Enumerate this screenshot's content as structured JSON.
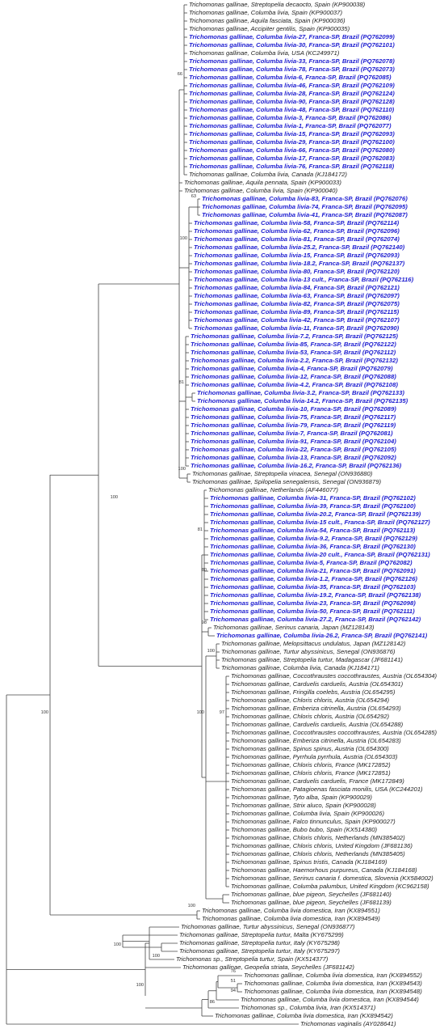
{
  "label_color": "#222222",
  "leaves": [
    {
      "label": "Trichomonas gallinae, Streptopelia decaocto, Spain (KP900038)"
    },
    {
      "label": "Trichomonas gallinae, Columba livia, Spain (KP900037)"
    },
    {
      "label": "Trichomonas gallinae, Aquila fasciata, Spain (KP900036)"
    },
    {
      "label": "Trichomonas gallinae, Accipiter gentilis, Spain (KP900035)"
    },
    {
      "label": "Trichomonas gallinae, Columba livia-27, Franca-SP, Brazil (PQ762099)",
      "color": "#1c1cd0"
    },
    {
      "label": "Trichomonas gallinae, Columba livia-30, Franca-SP, Brazil (PQ762101)",
      "color": "#1c1cd0"
    },
    {
      "label": "Trichomonas gallinae, Columba livia, USA (KC249971)"
    },
    {
      "label": "Trichomonas gallinae, Columba livia-33, Franca-SP, Brazil (PQ762078)",
      "color": "#1c1cd0"
    },
    {
      "label": "Trichomonas gallinae, Columba livia-78, Franca-SP, Brazil (PQ762073)",
      "color": "#1c1cd0"
    },
    {
      "label": "Trichomonas gallinae, Columba livia-6, Franca-SP, Brazil (PQ762085)",
      "color": "#1c1cd0"
    },
    {
      "label": "Trichomonas gallinae, Columba livia-46, Franca-SP, Brazil (PQ762109)",
      "color": "#1c1cd0"
    },
    {
      "label": "Trichomonas gallinae, Columba livia-28, Franca-SP, Brazil (PQ762124)",
      "color": "#1c1cd0"
    },
    {
      "label": "Trichomonas gallinae, Columba livia-90, Franca-SP, Brazil (PQ762128)",
      "color": "#1c1cd0"
    },
    {
      "label": "Trichomonas gallinae, Columba livia-48, Franca-SP, Brazil (PQ762110)",
      "color": "#1c1cd0"
    },
    {
      "label": "Trichomonas gallinae, Columba livia-3, Franca-SP, Brazil (PQ762086)",
      "color": "#1c1cd0"
    },
    {
      "label": "Trichomonas gallinae, Columba livia-1, Franca-SP, Brazil (PQ762077)",
      "color": "#1c1cd0"
    },
    {
      "label": "Trichomonas gallinae, Columba livia-15, Franca-SP, Brazil (PQ762093)",
      "color": "#1c1cd0"
    },
    {
      "label": "Trichomonas gallinae, Columba livia-29, Franca-SP, Brazil (PQ762100)",
      "color": "#1c1cd0"
    },
    {
      "label": "Trichomonas gallinae, Columba livia-66, Franca-SP, Brazil (PQ762080)",
      "color": "#1c1cd0"
    },
    {
      "label": "Trichomonas gallinae, Columba livia-17, Franca-SP, Brazil (PQ762083)",
      "color": "#1c1cd0"
    },
    {
      "label": "Trichomonas gallinae, Columba livia-76, Franca-SP, Brazil (PQ762118)",
      "color": "#1c1cd0"
    },
    {
      "label": "Trichomonas gallinae, Columba livia, Canada (KJ184172)"
    },
    {
      "label": "Trichomonas gallinae, Aquila pennata, Spain (KP900033)"
    },
    {
      "label": "Trichomonas gallinae, Columba livia, Spain (KP900040)"
    },
    {
      "label": "Trichomonas gallinae, Columba livia-83, Franca-SP, Brazil (PQ762076)",
      "color": "#1c1cd0"
    },
    {
      "label": "Trichomonas gallinae, Columba livia-74, Franca-SP, Brazil (PQ762095)",
      "color": "#1c1cd0"
    },
    {
      "label": "Trichomonas gallinae, Columba livia-41, Franca-SP, Brazil (PQ762087)",
      "color": "#1c1cd0"
    },
    {
      "label": "Trichomonas gallinae, Columba livia-58, Franca-SP, Brazil (PQ762114)",
      "color": "#1c1cd0"
    },
    {
      "label": "Trichomonas gallinae, Columba livia-62, Franca-SP, Brazil (PQ762096)",
      "color": "#1c1cd0"
    },
    {
      "label": "Trichomonas gallinae, Columba livia-81, Franca-SP, Brazil (PQ762074)",
      "color": "#1c1cd0"
    },
    {
      "label": "Trichomonas gallinae, Columba livia-25.2, Franca-SP, Brazil (PQ762140)",
      "color": "#1c1cd0"
    },
    {
      "label": "Trichomonas gallinae, Columba livia-15, Franca-SP, Brazil (PQ762093)",
      "color": "#1c1cd0"
    },
    {
      "label": "Trichomonas gallinae, Columba livia-18.2, Franca-SP, Brazil (PQ762137)",
      "color": "#1c1cd0"
    },
    {
      "label": "Trichomonas gallinae, Columba livia-80, Franca-SP, Brazil (PQ762120)",
      "color": "#1c1cd0"
    },
    {
      "label": "Trichomonas gallinae, Columba livia-13 cult., Franca-SP, Brazil (PQ762116)",
      "color": "#1c1cd0"
    },
    {
      "label": "Trichomonas gallinae, Columba livia-84, Franca-SP, Brazil (PQ762121)",
      "color": "#1c1cd0"
    },
    {
      "label": "Trichomonas gallinae, Columba livia-63, Franca-SP, Brazil (PQ762097)",
      "color": "#1c1cd0"
    },
    {
      "label": "Trichomonas gallinae, Columba livia-82, Franca-SP, Brazil (PQ762075)",
      "color": "#1c1cd0"
    },
    {
      "label": "Trichomonas gallinae, Columba livia-89, Franca-SP, Brazil (PQ762115)",
      "color": "#1c1cd0"
    },
    {
      "label": "Trichomonas gallinae, Columba livia-42, Franca-SP, Brazil (PQ762107)",
      "color": "#1c1cd0"
    },
    {
      "label": "Trichomonas gallinae, Columba livia-11, Franca-SP, Brazil (PQ762090)",
      "color": "#1c1cd0"
    },
    {
      "label": "Trichomonas gallinae, Columba livia-7.2, Franca-SP, Brazil (PQ762125)",
      "color": "#1c1cd0"
    },
    {
      "label": "Trichomonas gallinae, Columba livia-85, Franca-SP, Brazil (PQ762122)",
      "color": "#1c1cd0"
    },
    {
      "label": "Trichomonas gallinae, Columba livia-53, Franca-SP, Brazil (PQ762112)",
      "color": "#1c1cd0"
    },
    {
      "label": "Trichomonas gallinae, Columba livia-2.2, Franca-SP, Brazil (PQ762132)",
      "color": "#1c1cd0"
    },
    {
      "label": "Trichomonas gallinae, Columba livia-4, Franca-SP, Brazil (PQ762079)",
      "color": "#1c1cd0"
    },
    {
      "label": "Trichomonas gallinae, Columba livia-12, Franca-SP, Brazil (PQ762088)",
      "color": "#1c1cd0"
    },
    {
      "label": "Trichomonas gallinae, Columba livia-4.2, Franca-SP, Brazil (PQ762108)",
      "color": "#1c1cd0"
    },
    {
      "label": "Trichomonas gallinae, Columba livia-3.2, Franca-SP, Brazil (PQ762133)",
      "color": "#1c1cd0"
    },
    {
      "label": "Trichomonas gallinae, Columba livia-14.2, Franca-SP, Brazil (PQ762135)",
      "color": "#1c1cd0"
    },
    {
      "label": "Trichomonas gallinae, Columba livia-10, Franca-SP, Brazil (PQ762089)",
      "color": "#1c1cd0"
    },
    {
      "label": "Trichomonas gallinae, Columba livia-75, Franca-SP, Brazil (PQ762117)",
      "color": "#1c1cd0"
    },
    {
      "label": "Trichomonas gallinae, Columba livia-79, Franca-SP, Brazil (PQ762119)",
      "color": "#1c1cd0"
    },
    {
      "label": "Trichomonas gallinae, Columba livia-7, Franca-SP, Brazil (PQ762081)",
      "color": "#1c1cd0"
    },
    {
      "label": "Trichomonas gallinae, Columba livia-91, Franca-SP, Brazil (PQ762104)",
      "color": "#1c1cd0"
    },
    {
      "label": "Trichomonas gallinae, Columba livia-22, Franca-SP, Brazil (PQ762105)",
      "color": "#1c1cd0"
    },
    {
      "label": "Trichomonas gallinae, Columba livia-13, Franca-SP, Brazil (PQ762092)",
      "color": "#1c1cd0"
    },
    {
      "label": "Trichomonas gallinae, Columba livia-16.2, Franca-SP, Brazil (PQ762136)",
      "color": "#1c1cd0"
    },
    {
      "label": "Trichomonas gallinae, Streptopelia vinacea, Senegal (ON936880)"
    },
    {
      "label": "Trichomonas gallinae, Spilopelia senegalensis, Senegal (ON936879)"
    },
    {
      "label": "Trichomonas gallinae, Netherlands (AF446077)"
    },
    {
      "label": "Trichomonas gallinae, Columba livia-31, Franca-SP, Brazil (PQ762102)",
      "color": "#1c1cd0"
    },
    {
      "label": "Trichomonas gallinae, Columba livia-39, Franca-SP, Brazil (PQ762100)",
      "color": "#1c1cd0"
    },
    {
      "label": "Trichomonas gallinae, Columba livia-20.2, Franca-SP, Brazil (PQ762139)",
      "color": "#1c1cd0"
    },
    {
      "label": "Trichomonas gallinae, Columba livia-15 cult., Franca-SP, Brazil (PQ762127)",
      "color": "#1c1cd0"
    },
    {
      "label": "Trichomonas gallinae, Columba livia-54, Franca-SP, Brazil (PQ762113)",
      "color": "#1c1cd0"
    },
    {
      "label": "Trichomonas gallinae, Columba livia-9.2, Franca-SP, Brazil (PQ762129)",
      "color": "#1c1cd0"
    },
    {
      "label": "Trichomonas gallinae, Columba livia-36, Franca-SP, Brazil (PQ762130)",
      "color": "#1c1cd0"
    },
    {
      "label": "Trichomonas gallinae, Columba livia-20 cult., Franca-SP, Brazil (PQ762131)",
      "color": "#1c1cd0"
    },
    {
      "label": "Trichomonas gallinae, Columba livia-5, Franca-SP, Brazil (PQ762082)",
      "color": "#1c1cd0"
    },
    {
      "label": "Trichomonas gallinae, Columba livia-21, Franca-SP, Brazil (PQ762091)",
      "color": "#1c1cd0"
    },
    {
      "label": "Trichomonas gallinae, Columba livia-1.2, Franca-SP, Brazil (PQ762126)",
      "color": "#1c1cd0"
    },
    {
      "label": "Trichomonas gallinae, Columba livia-35, Franca-SP, Brazil (PQ762103)",
      "color": "#1c1cd0"
    },
    {
      "label": "Trichomonas gallinae, Columba livia-19.2, Franca-SP, Brazil (PQ762138)",
      "color": "#1c1cd0"
    },
    {
      "label": "Trichomonas gallinae, Columba livia-23, Franca-SP, Brazil (PQ762098)",
      "color": "#1c1cd0"
    },
    {
      "label": "Trichomonas gallinae, Columba livia-50, Franca-SP, Brazil (PQ762111)",
      "color": "#1c1cd0"
    },
    {
      "label": "Trichomonas gallinae, Columba livia-27.2, Franca-SP, Brazil (PQ762142)",
      "color": "#1c1cd0"
    },
    {
      "label": "Trichomonas gallinae, Serinus canaria, Japan (MZ128143)"
    },
    {
      "label": "Trichomonas gallinae, Columba livia-26.2, Franca-SP, Brazil (PQ762141)",
      "color": "#1c1cd0"
    },
    {
      "label": "Trichomonas gallinae, Melopsittacus undulatus, Japan (MZ128142)"
    },
    {
      "label": "Trichomonas gallinae, Turtur abyssinicus, Senegal (ON936876)"
    },
    {
      "label": "Trichomonas gallinae, Streptopelia turtur, Madagascar (JF681141)"
    },
    {
      "label": "Trichomonas gallinae, Columba livia, Canada (KJ184171)"
    },
    {
      "label": "Trichomonas gallinae, Coccothraustes coccothraustes, Austria (OL654304)"
    },
    {
      "label": "Trichomonas gallinae, Carduelis carduelis, Austria (OL654301)"
    },
    {
      "label": "Trichomonas gallinae, Fringilla coelebs, Austria (OL654295)"
    },
    {
      "label": "Trichomonas gallinae, Chloris chloris, Austria (OL654294)"
    },
    {
      "label": "Trichomonas gallinae, Emberiza citrinella, Austria (OL654293)"
    },
    {
      "label": "Trichomonas gallinae, Chloris chloris, Austria (OL654292)"
    },
    {
      "label": "Trichomonas gallinae, Carduelis carduelis, Austria (OL654288)"
    },
    {
      "label": "Trichomonas gallinae, Coccothraustes coccothraustes, Austria (OL654285)"
    },
    {
      "label": "Trichomonas gallinae, Emberiza citrinella, Austria (OL654283)"
    },
    {
      "label": "Trichomonas gallinae, Spinus spinus, Austria (OL654300)"
    },
    {
      "label": "Trichomonas gallinae, Pyrrhula pyrrhula, Austria (OL654303)"
    },
    {
      "label": "Trichomonas gallinae, Chloris chloris, France (MK172852)"
    },
    {
      "label": "Trichomonas gallinae, Chloris chloris, France (MK172851)"
    },
    {
      "label": "Trichomonas gallinae, Carduelis carduelis, France (MK172849)"
    },
    {
      "label": "Trichomonas gallinae, Patagioenas fasciata monilis, USA (KC244201)"
    },
    {
      "label": "Trichomonas gallinae, Tyto alba, Spain (KP900029)"
    },
    {
      "label": "Trichomonas gallinae, Strix aluco, Spain (KP900028)"
    },
    {
      "label": "Trichomonas gallinae, Columba livia, Spain (KP900026)"
    },
    {
      "label": "Trichomonas gallinae, Falco tinnunculus, Spain (KP900027)"
    },
    {
      "label": "Trichomonas gallinae, Bubo bubo, Spain (KX514380)"
    },
    {
      "label": "Trichomonas gallinae, Chloris chloris, Netherlands (MN385402)"
    },
    {
      "label": "Trichomonas gallinae, Chloris chloris, United Kingdom (JF681136)"
    },
    {
      "label": "Trichomonas gallinae, Chloris chloris, Netherlands (MN385405)"
    },
    {
      "label": "Trichomonas gallinae, Spinus tristis, Canada (KJ184169)"
    },
    {
      "label": "Trichomonas gallinae, Haemorhous purpureus, Canada (KJ184168)"
    },
    {
      "label": "Trichomonas gallinae, Serinus canaria f. domestica, Slovenia (KX584002)"
    },
    {
      "label": "Trichomonas gallinae, Columba palumbus, United Kingdom (KC962158)"
    },
    {
      "label": "Trichomonas gallinae, blue pigeon, Seychelles (JF681140)"
    },
    {
      "label": "Trichomonas gallinae, blue pigeon, Seychelles (JF681139)"
    },
    {
      "label": "Trichomonas gallinae, Columba livia domestica, Iran (KX894551)"
    },
    {
      "label": "Trichomonas gallinae, Columba livia domestica, Iran (KX894549)"
    },
    {
      "label": "Trichomonas gallinae, Turtur abyssinicus, Senegal (ON936877)"
    },
    {
      "label": "Trichomonas gallinae, Streptopelia turtur, Malta (KY675299)"
    },
    {
      "label": "Trichomonas gallinae, Streptopelia turtur, Italy (KY675298)"
    },
    {
      "label": "Trichomonas gallinae, Streptopelia turtur, Italy (KY675297)"
    },
    {
      "label": "Trichomonas sp., Streptopelia turtur, Spain (KX514377)"
    },
    {
      "label": "Trichomonas gallinae, Geopelia striata, Seychelles (JF681142)"
    },
    {
      "label": "Trichomonas gallinae, Columba livia domestica, Iran (KX894552)"
    },
    {
      "label": "Trichomonas gallinae, Columba livia domestica, Iran (KX894543)"
    },
    {
      "label": "Trichomonas gallinae, Columba livia domestica, Iran (KX894548)"
    },
    {
      "label": "Trichomonas gallinae, Columba livia domestica, Iran (KX894544)"
    },
    {
      "label": "Trichomonas sp., Columba livia, Iran (KX514371)"
    },
    {
      "label": "Trichomonas gallinae, Columba livia domestica, Iran (KX894542)"
    },
    {
      "label": "Trichomonas vaginalis (AY028641)"
    }
  ],
  "bootstrap": [
    66,
    63,
    100,
    81,
    100,
    100,
    81,
    80,
    98,
    100,
    97,
    100,
    100,
    100,
    100,
    100,
    100,
    76,
    51,
    94,
    86
  ]
}
